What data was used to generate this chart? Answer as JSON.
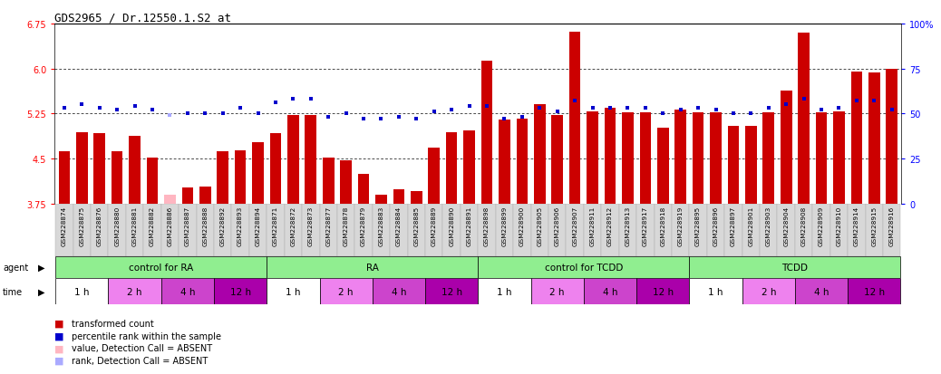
{
  "title": "GDS2965 / Dr.12550.1.S2_at",
  "samples": [
    "GSM228874",
    "GSM228875",
    "GSM228876",
    "GSM228880",
    "GSM228881",
    "GSM228882",
    "GSM228886",
    "GSM228887",
    "GSM228888",
    "GSM228892",
    "GSM228893",
    "GSM228894",
    "GSM228871",
    "GSM228872",
    "GSM228873",
    "GSM228877",
    "GSM228878",
    "GSM228879",
    "GSM228883",
    "GSM228884",
    "GSM228885",
    "GSM228889",
    "GSM228890",
    "GSM228891",
    "GSM228898",
    "GSM228899",
    "GSM228900",
    "GSM228905",
    "GSM228906",
    "GSM228907",
    "GSM228911",
    "GSM228912",
    "GSM228913",
    "GSM228917",
    "GSM228918",
    "GSM228919",
    "GSM228895",
    "GSM228896",
    "GSM228897",
    "GSM228901",
    "GSM228903",
    "GSM228904",
    "GSM228908",
    "GSM228909",
    "GSM228910",
    "GSM228914",
    "GSM228915",
    "GSM228916"
  ],
  "bar_values": [
    4.62,
    4.93,
    4.92,
    4.62,
    4.88,
    4.52,
    3.9,
    4.02,
    4.03,
    4.62,
    4.63,
    4.77,
    4.92,
    5.22,
    5.22,
    4.52,
    4.47,
    4.24,
    3.9,
    3.99,
    3.96,
    4.68,
    4.93,
    4.97,
    6.13,
    5.15,
    5.17,
    5.4,
    5.22,
    6.62,
    5.29,
    5.35,
    5.27,
    5.27,
    5.02,
    5.31,
    5.27,
    5.27,
    5.05,
    5.05,
    5.27,
    5.63,
    6.6,
    5.27,
    5.29,
    5.95,
    5.93,
    5.99
  ],
  "percentile_values": [
    53,
    55,
    53,
    52,
    54,
    52,
    49,
    50,
    50,
    50,
    53,
    50,
    56,
    58,
    58,
    48,
    50,
    47,
    47,
    48,
    47,
    51,
    52,
    54,
    54,
    47,
    48,
    53,
    51,
    57,
    53,
    53,
    53,
    53,
    50,
    52,
    53,
    52,
    50,
    50,
    53,
    55,
    58,
    52,
    53,
    57,
    57,
    52
  ],
  "absent_flags": [
    false,
    false,
    false,
    false,
    false,
    false,
    true,
    false,
    false,
    false,
    false,
    false,
    false,
    false,
    false,
    false,
    false,
    false,
    false,
    false,
    false,
    false,
    false,
    false,
    false,
    false,
    false,
    false,
    false,
    false,
    false,
    false,
    false,
    false,
    false,
    false,
    false,
    false,
    false,
    false,
    false,
    false,
    false,
    false,
    false,
    false,
    false,
    false
  ],
  "absent_rank_flags": [
    false,
    false,
    false,
    false,
    false,
    false,
    true,
    false,
    false,
    false,
    false,
    false,
    false,
    false,
    false,
    false,
    false,
    false,
    false,
    false,
    false,
    false,
    false,
    false,
    false,
    false,
    false,
    false,
    false,
    false,
    false,
    false,
    false,
    false,
    false,
    false,
    false,
    false,
    false,
    false,
    false,
    false,
    false,
    false,
    false,
    false,
    false,
    false
  ],
  "groups": [
    {
      "label": "control for RA",
      "start": 0,
      "end": 12
    },
    {
      "label": "RA",
      "start": 12,
      "end": 24
    },
    {
      "label": "control for TCDD",
      "start": 24,
      "end": 36
    },
    {
      "label": "TCDD",
      "start": 36,
      "end": 48
    }
  ],
  "time_groups": [
    {
      "label": "1 h",
      "start": 0,
      "end": 3
    },
    {
      "label": "2 h",
      "start": 3,
      "end": 6
    },
    {
      "label": "4 h",
      "start": 6,
      "end": 9
    },
    {
      "label": "12 h",
      "start": 9,
      "end": 12
    },
    {
      "label": "1 h",
      "start": 12,
      "end": 15
    },
    {
      "label": "2 h",
      "start": 15,
      "end": 18
    },
    {
      "label": "4 h",
      "start": 18,
      "end": 21
    },
    {
      "label": "12 h",
      "start": 21,
      "end": 24
    },
    {
      "label": "1 h",
      "start": 24,
      "end": 27
    },
    {
      "label": "2 h",
      "start": 27,
      "end": 30
    },
    {
      "label": "4 h",
      "start": 30,
      "end": 33
    },
    {
      "label": "12 h",
      "start": 33,
      "end": 36
    },
    {
      "label": "1 h",
      "start": 36,
      "end": 39
    },
    {
      "label": "2 h",
      "start": 39,
      "end": 42
    },
    {
      "label": "4 h",
      "start": 42,
      "end": 45
    },
    {
      "label": "12 h",
      "start": 45,
      "end": 48
    }
  ],
  "time_colors": {
    "1 h": "#ffffff",
    "2 h": "#ee82ee",
    "4 h": "#cc44cc",
    "12 h": "#aa00aa"
  },
  "ylim": [
    3.75,
    6.75
  ],
  "yticks_left": [
    3.75,
    4.5,
    5.25,
    6.0,
    6.75
  ],
  "yticks_right": [
    0,
    25,
    50,
    75,
    100
  ],
  "bar_color": "#cc0000",
  "absent_bar_color": "#ffb6c1",
  "dot_color": "#0000cc",
  "absent_dot_color": "#aaaaff",
  "agent_color": "#90ee90",
  "title_fontsize": 9,
  "label_fontsize": 7,
  "tick_fontsize": 7,
  "sample_fontsize": 5.2,
  "legend_fontsize": 7
}
